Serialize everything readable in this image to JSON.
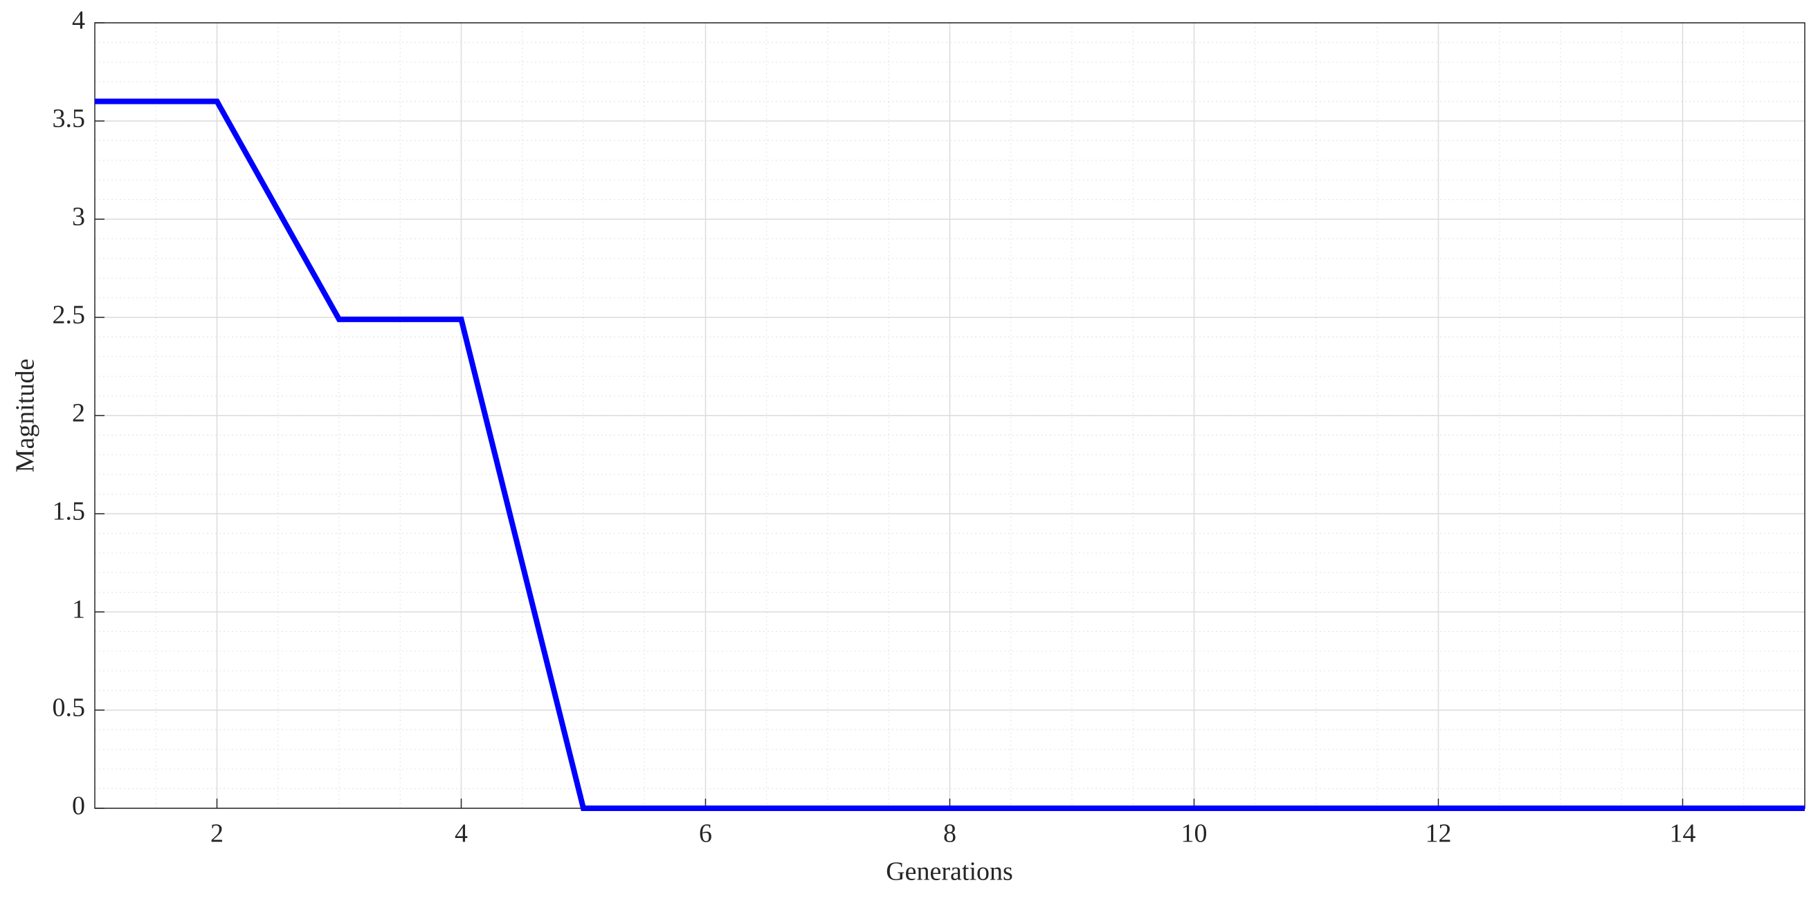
{
  "chart_data": {
    "type": "line",
    "x_label": "Generations",
    "y_label": "Magnitude",
    "x": [
      1,
      2,
      3,
      4,
      5,
      6,
      7,
      8,
      9,
      10,
      11,
      12,
      13,
      14,
      15
    ],
    "series": [
      {
        "color": "#0000ff",
        "values": [
          3.6,
          3.6,
          2.49,
          2.49,
          0,
          0,
          0,
          0,
          0,
          0,
          0,
          0,
          0,
          0,
          0
        ]
      }
    ],
    "xlim": [
      1,
      15
    ],
    "ylim": [
      0,
      4
    ],
    "xticks": [
      2,
      4,
      6,
      8,
      10,
      12,
      14
    ],
    "yticks": [
      0,
      0.5,
      1,
      1.5,
      2,
      2.5,
      3,
      3.5,
      4
    ],
    "xminorticks": [
      1.5,
      2,
      2.5,
      3,
      3.5,
      4,
      4.5,
      5,
      5.5,
      6,
      6.5,
      7,
      7.5,
      8,
      8.5,
      9,
      9.5,
      10,
      10.5,
      11,
      11.5,
      12,
      12.5,
      13,
      13.5,
      14,
      14.5
    ],
    "yminorticks": [
      0.1,
      0.2,
      0.3,
      0.4,
      0.5,
      0.6,
      0.7,
      0.8,
      0.9,
      1,
      1.1,
      1.2,
      1.3,
      1.4,
      1.5,
      1.6,
      1.7,
      1.8,
      1.9,
      2,
      2.1,
      2.2,
      2.3,
      2.4,
      2.5,
      2.6,
      2.7,
      2.8,
      2.9,
      3,
      3.1,
      3.2,
      3.3,
      3.4,
      3.5,
      3.6,
      3.7,
      3.8,
      3.9
    ],
    "grid": true,
    "minor_grid": true
  }
}
